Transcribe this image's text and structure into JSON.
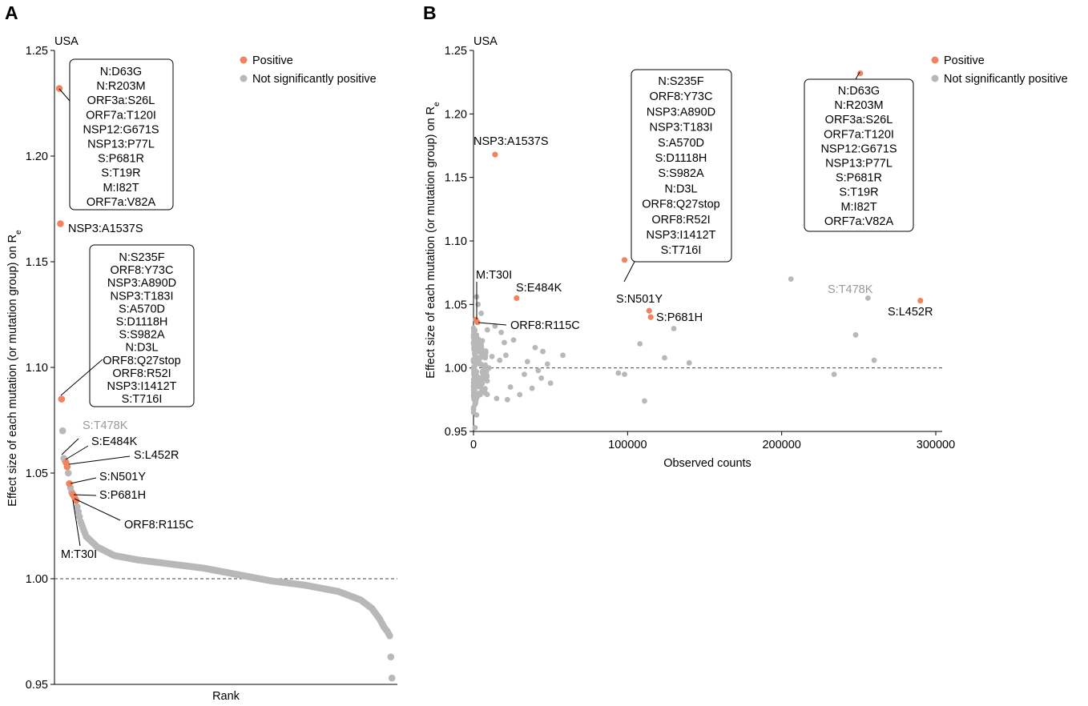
{
  "colors": {
    "positive": "#f08460",
    "not_significant": "#b8b8b8",
    "label_gray": "#999999"
  },
  "chart_data": [
    {
      "panel": "A",
      "type": "scatter",
      "title": "USA",
      "xlabel": "Rank",
      "ylabel": "Effect size of each mutation (or mutation group) on Re",
      "ylabel_main": "Effect size of each mutation (or mutation group) on R",
      "ylabel_sub": "e",
      "ylim": [
        0.95,
        1.25
      ],
      "yticks": [
        "0.95",
        "1.00",
        "1.05",
        "1.10",
        "1.15",
        "1.20",
        "1.25"
      ],
      "legend": [
        {
          "name": "Positive",
          "color": "#f08460"
        },
        {
          "name": "Not significantly positive",
          "color": "#b8b8b8"
        }
      ],
      "legend_position": "top-right",
      "reference_line": 1.0,
      "n_points": 300,
      "positive_points": [
        {
          "rank": 1,
          "value": 1.232
        },
        {
          "rank": 2,
          "value": 1.168
        },
        {
          "rank": 3,
          "value": 1.085
        },
        {
          "rank": 7,
          "value": 1.055
        },
        {
          "rank": 8,
          "value": 1.053
        },
        {
          "rank": 10,
          "value": 1.045
        },
        {
          "rank": 13,
          "value": 1.04
        },
        {
          "rank": 15,
          "value": 1.038
        },
        {
          "rank": 16,
          "value": 1.037
        }
      ],
      "gray_points": [
        {
          "rank": 4,
          "value": 1.07
        },
        {
          "rank": 5,
          "value": 1.057
        },
        {
          "rank": 6,
          "value": 1.056
        },
        {
          "rank": 9,
          "value": 1.05
        },
        {
          "rank": 11,
          "value": 1.043
        },
        {
          "rank": 12,
          "value": 1.041
        },
        {
          "rank": 14,
          "value": 1.039
        }
      ],
      "curve": [
        [
          17,
          1.034
        ],
        [
          20,
          1.027
        ],
        [
          25,
          1.02
        ],
        [
          35,
          1.015
        ],
        [
          50,
          1.011
        ],
        [
          70,
          1.009
        ],
        [
          100,
          1.007
        ],
        [
          130,
          1.005
        ],
        [
          160,
          1.002
        ],
        [
          190,
          0.999
        ],
        [
          220,
          0.997
        ],
        [
          250,
          0.994
        ],
        [
          270,
          0.99
        ],
        [
          280,
          0.986
        ],
        [
          287,
          0.981
        ],
        [
          291,
          0.977
        ],
        [
          294,
          0.975
        ],
        [
          296,
          0.973
        ]
      ],
      "tail_points": [
        {
          "rank": 297,
          "value": 0.963
        },
        {
          "rank": 298,
          "value": 0.953
        }
      ],
      "labels": {
        "t478k": "S:T478K",
        "e484k": "S:E484K",
        "l452r": "S:L452R",
        "n501y": "S:N501Y",
        "p681h": "S:P681H",
        "r115c": "ORF8:R115C",
        "t30i": "M:T30I",
        "a1537s": "NSP3:A1537S"
      },
      "box1": [
        "N:D63G",
        "N:R203M",
        "ORF3a:S26L",
        "ORF7a:T120I",
        "NSP12:G671S",
        "NSP13:P77L",
        "S:P681R",
        "S:T19R",
        "M:I82T",
        "ORF7a:V82A"
      ],
      "box2": [
        "N:S235F",
        "ORF8:Y73C",
        "NSP3:A890D",
        "NSP3:T183I",
        "S:A570D",
        "S:D1118H",
        "S:S982A",
        "N:D3L",
        "ORF8:Q27stop",
        "ORF8:R52I",
        "NSP3:I1412T",
        "S:T716I"
      ]
    },
    {
      "panel": "B",
      "type": "scatter",
      "title": "USA",
      "xlabel": "Observed counts",
      "ylabel": "Effect size of each mutation (or mutation group) on Re",
      "ylabel_main": "Effect size of each mutation (or mutation group) on R",
      "ylabel_sub": "e",
      "xlim": [
        0,
        300000
      ],
      "ylim": [
        0.95,
        1.25
      ],
      "xticks": [
        "0",
        "100000",
        "200000",
        "300000"
      ],
      "yticks": [
        "0.95",
        "1.00",
        "1.05",
        "1.10",
        "1.15",
        "1.20",
        "1.25"
      ],
      "legend": [
        {
          "name": "Positive",
          "color": "#f08460"
        },
        {
          "name": "Not significantly positive",
          "color": "#b8b8b8"
        }
      ],
      "legend_position": "top-right",
      "reference_line": 1.0,
      "positive_points": [
        {
          "label": "group1",
          "x": 251000,
          "y": 1.232
        },
        {
          "label": "NSP3:A1537S",
          "x": 14000,
          "y": 1.168
        },
        {
          "label": "group2",
          "x": 98000,
          "y": 1.085
        },
        {
          "label": "S:E484K",
          "x": 28000,
          "y": 1.055
        },
        {
          "label": "S:L452R",
          "x": 290000,
          "y": 1.053
        },
        {
          "label": "S:N501Y",
          "x": 114000,
          "y": 1.045
        },
        {
          "label": "S:P681H",
          "x": 115000,
          "y": 1.04
        },
        {
          "label": "M:T30I",
          "x": 1500,
          "y": 1.038
        },
        {
          "label": "ORF8:R115C",
          "x": 2500,
          "y": 1.036
        }
      ],
      "gray_points": [
        {
          "x": 206000,
          "y": 1.07
        },
        {
          "x": 256000,
          "y": 1.055
        },
        {
          "x": 248000,
          "y": 1.026
        },
        {
          "x": 260000,
          "y": 1.006
        },
        {
          "x": 234000,
          "y": 0.995
        },
        {
          "x": 130000,
          "y": 1.031
        },
        {
          "x": 108000,
          "y": 1.019
        },
        {
          "x": 124000,
          "y": 1.008
        },
        {
          "x": 140000,
          "y": 1.004
        },
        {
          "x": 94000,
          "y": 0.996
        },
        {
          "x": 98000,
          "y": 0.995
        },
        {
          "x": 111000,
          "y": 0.974
        },
        {
          "x": 58000,
          "y": 1.01
        },
        {
          "x": 48000,
          "y": 1.003
        },
        {
          "x": 45000,
          "y": 1.013
        },
        {
          "x": 42000,
          "y": 0.998
        },
        {
          "x": 50000,
          "y": 0.988
        },
        {
          "x": 38000,
          "y": 0.984
        },
        {
          "x": 30000,
          "y": 0.979
        },
        {
          "x": 26000,
          "y": 1.022
        },
        {
          "x": 24000,
          "y": 0.985
        },
        {
          "x": 22000,
          "y": 0.975
        },
        {
          "x": 20000,
          "y": 1.02
        },
        {
          "x": 17000,
          "y": 1.006
        },
        {
          "x": 15000,
          "y": 0.976
        },
        {
          "x": 12000,
          "y": 1.009
        },
        {
          "x": 10000,
          "y": 1.0
        },
        {
          "x": 8000,
          "y": 1.012
        },
        {
          "x": 6000,
          "y": 0.993
        },
        {
          "x": 4000,
          "y": 1.003
        },
        {
          "x": 2000,
          "y": 0.963
        },
        {
          "x": 1000,
          "y": 0.953
        },
        {
          "x": 3000,
          "y": 1.05
        },
        {
          "x": 2000,
          "y": 1.056
        },
        {
          "x": 5000,
          "y": 1.043
        },
        {
          "x": 9000,
          "y": 1.03
        },
        {
          "x": 14000,
          "y": 1.033
        },
        {
          "x": 18000,
          "y": 1.028
        },
        {
          "x": 21000,
          "y": 1.01
        },
        {
          "x": 35000,
          "y": 1.005
        },
        {
          "x": 40000,
          "y": 1.016
        },
        {
          "x": 33000,
          "y": 0.995
        },
        {
          "x": 44000,
          "y": 0.992
        }
      ],
      "labels": {
        "a1537s": "NSP3:A1537S",
        "t30i": "M:T30I",
        "e484k": "S:E484K",
        "r115c": "ORF8:R115C",
        "n501y": "S:N501Y",
        "p681h": "S:P681H",
        "t478k": "S:T478K",
        "l452r": "S:L452R"
      },
      "box2": [
        "N:S235F",
        "ORF8:Y73C",
        "NSP3:A890D",
        "NSP3:T183I",
        "S:A570D",
        "S:D1118H",
        "S:S982A",
        "N:D3L",
        "ORF8:Q27stop",
        "ORF8:R52I",
        "NSP3:I1412T",
        "S:T716I"
      ],
      "box1": [
        "N:D63G",
        "N:R203M",
        "ORF3a:S26L",
        "ORF7a:T120I",
        "NSP12:G671S",
        "NSP13:P77L",
        "S:P681R",
        "S:T19R",
        "M:I82T",
        "ORF7a:V82A"
      ]
    }
  ]
}
